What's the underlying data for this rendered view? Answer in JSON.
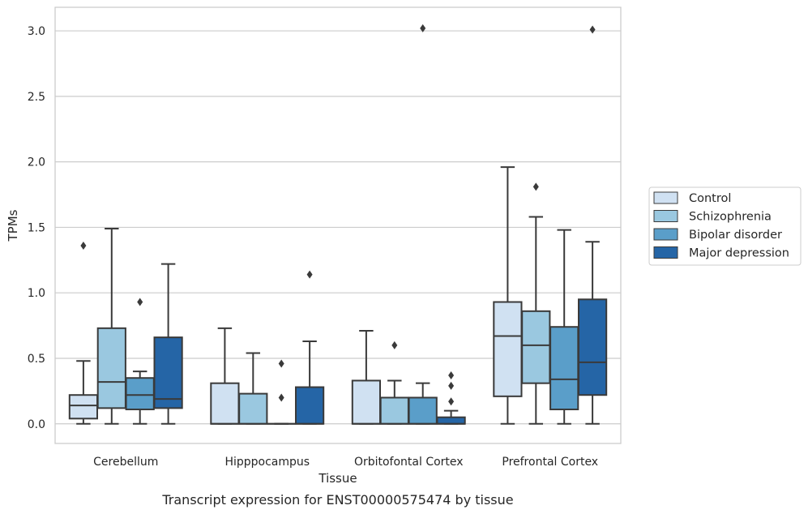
{
  "caption": "Transcript expression for ENST00000575474 by tissue",
  "chart_data": {
    "type": "box",
    "xlabel": "Tissue",
    "ylabel": "TPMs",
    "ylim": [
      -0.15,
      3.18
    ],
    "yticks": [
      0.0,
      0.5,
      1.0,
      1.5,
      2.0,
      2.5,
      3.0
    ],
    "ytick_labels": [
      "0.0",
      "0.5",
      "1.0",
      "1.5",
      "2.0",
      "2.5",
      "3.0"
    ],
    "grid": "horizontal",
    "legend_position": "right",
    "categories": [
      "Cerebellum",
      "Hipppocampus",
      "Orbitofontal Cortex",
      "Prefrontal Cortex"
    ],
    "series": [
      {
        "name": "Control",
        "color": "#d0e1f2",
        "boxes": [
          {
            "whislo": 0.0,
            "q1": 0.04,
            "med": 0.14,
            "q3": 0.22,
            "whishi": 0.48,
            "fliers": [
              1.36
            ]
          },
          {
            "whislo": 0.0,
            "q1": 0.0,
            "med": 0.0,
            "q3": 0.31,
            "whishi": 0.73,
            "fliers": []
          },
          {
            "whislo": 0.0,
            "q1": 0.0,
            "med": 0.0,
            "q3": 0.33,
            "whishi": 0.71,
            "fliers": []
          },
          {
            "whislo": 0.0,
            "q1": 0.21,
            "med": 0.67,
            "q3": 0.93,
            "whishi": 1.96,
            "fliers": []
          }
        ]
      },
      {
        "name": "Schizophrenia",
        "color": "#9ac8e0",
        "boxes": [
          {
            "whislo": 0.0,
            "q1": 0.12,
            "med": 0.32,
            "q3": 0.73,
            "whishi": 1.49,
            "fliers": []
          },
          {
            "whislo": 0.0,
            "q1": 0.0,
            "med": 0.0,
            "q3": 0.23,
            "whishi": 0.54,
            "fliers": []
          },
          {
            "whislo": 0.0,
            "q1": 0.0,
            "med": 0.0,
            "q3": 0.2,
            "whishi": 0.33,
            "fliers": [
              0.6
            ]
          },
          {
            "whislo": 0.0,
            "q1": 0.31,
            "med": 0.6,
            "q3": 0.86,
            "whishi": 1.58,
            "fliers": [
              1.81
            ]
          }
        ]
      },
      {
        "name": "Bipolar disorder",
        "color": "#5a9ec9",
        "boxes": [
          {
            "whislo": 0.0,
            "q1": 0.11,
            "med": 0.22,
            "q3": 0.35,
            "whishi": 0.4,
            "fliers": [
              0.93
            ]
          },
          {
            "whislo": 0.0,
            "q1": 0.0,
            "med": 0.0,
            "q3": 0.0,
            "whishi": 0.0,
            "fliers": [
              0.2,
              0.46
            ]
          },
          {
            "whislo": 0.0,
            "q1": 0.0,
            "med": 0.0,
            "q3": 0.2,
            "whishi": 0.31,
            "fliers": [
              3.02
            ]
          },
          {
            "whislo": 0.0,
            "q1": 0.11,
            "med": 0.34,
            "q3": 0.74,
            "whishi": 1.48,
            "fliers": []
          }
        ]
      },
      {
        "name": "Major depression",
        "color": "#2565a6",
        "boxes": [
          {
            "whislo": 0.0,
            "q1": 0.12,
            "med": 0.19,
            "q3": 0.66,
            "whishi": 1.22,
            "fliers": []
          },
          {
            "whislo": 0.0,
            "q1": 0.0,
            "med": 0.0,
            "q3": 0.28,
            "whishi": 0.63,
            "fliers": [
              1.14
            ]
          },
          {
            "whislo": 0.0,
            "q1": 0.0,
            "med": 0.0,
            "q3": 0.05,
            "whishi": 0.1,
            "fliers": [
              0.17,
              0.29,
              0.37
            ]
          },
          {
            "whislo": 0.0,
            "q1": 0.22,
            "med": 0.47,
            "q3": 0.95,
            "whishi": 1.39,
            "fliers": [
              3.01
            ]
          }
        ]
      }
    ]
  }
}
